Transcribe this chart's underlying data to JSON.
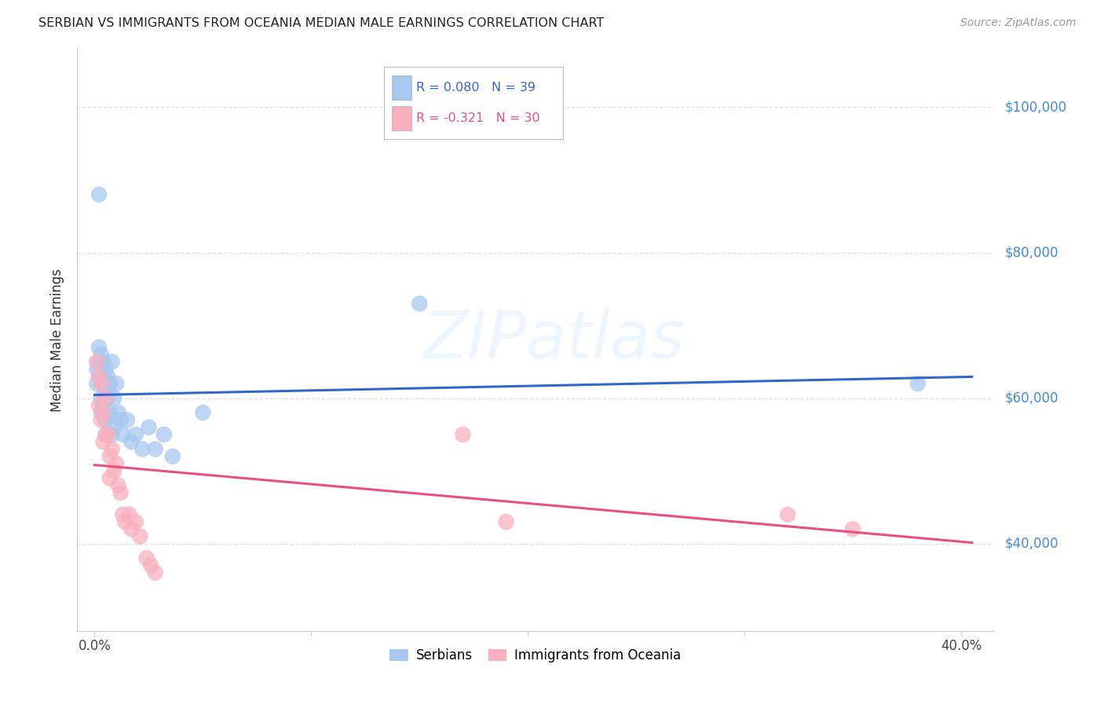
{
  "title": "SERBIAN VS IMMIGRANTS FROM OCEANIA MEDIAN MALE EARNINGS CORRELATION CHART",
  "source": "Source: ZipAtlas.com",
  "ylabel": "Median Male Earnings",
  "xlabel_ticks": [
    "0.0%",
    "",
    "",
    "",
    "40.0%"
  ],
  "xlabel_tick_vals": [
    0.0,
    0.1,
    0.2,
    0.3,
    0.4
  ],
  "ytick_labels": [
    "$40,000",
    "$60,000",
    "$80,000",
    "$100,000"
  ],
  "ytick_vals": [
    40000,
    60000,
    80000,
    100000
  ],
  "xlim": [
    -0.008,
    0.415
  ],
  "ylim": [
    28000,
    108000
  ],
  "watermark": "ZIPatlas",
  "legend_serbian_r": "R = 0.080",
  "legend_serbian_n": "N = 39",
  "legend_oceania_r": "R = -0.321",
  "legend_oceania_n": "N = 30",
  "serbian_color": "#a8c8f0",
  "oceania_color": "#f8b0c0",
  "serbian_line_color": "#3366cc",
  "oceania_line_color": "#e85080",
  "serbian_x": [
    0.001,
    0.001,
    0.002,
    0.002,
    0.002,
    0.003,
    0.003,
    0.003,
    0.003,
    0.004,
    0.004,
    0.004,
    0.005,
    0.005,
    0.005,
    0.006,
    0.006,
    0.007,
    0.007,
    0.008,
    0.008,
    0.009,
    0.009,
    0.01,
    0.011,
    0.012,
    0.013,
    0.015,
    0.017,
    0.019,
    0.022,
    0.025,
    0.028,
    0.032,
    0.036,
    0.05,
    0.15,
    0.38,
    0.002
  ],
  "serbian_y": [
    64000,
    62000,
    67000,
    65000,
    63000,
    66000,
    63000,
    60000,
    58000,
    65000,
    62000,
    59000,
    64000,
    61000,
    57000,
    63000,
    60000,
    62000,
    58000,
    65000,
    55000,
    60000,
    56000,
    62000,
    58000,
    57000,
    55000,
    57000,
    54000,
    55000,
    53000,
    56000,
    53000,
    55000,
    52000,
    58000,
    73000,
    62000,
    88000
  ],
  "oceania_x": [
    0.001,
    0.002,
    0.002,
    0.003,
    0.003,
    0.004,
    0.004,
    0.005,
    0.005,
    0.006,
    0.007,
    0.007,
    0.008,
    0.009,
    0.01,
    0.011,
    0.012,
    0.013,
    0.014,
    0.016,
    0.017,
    0.019,
    0.021,
    0.024,
    0.026,
    0.028,
    0.17,
    0.19,
    0.32,
    0.35
  ],
  "oceania_y": [
    65000,
    63000,
    59000,
    62000,
    57000,
    58000,
    54000,
    60000,
    55000,
    55000,
    52000,
    49000,
    53000,
    50000,
    51000,
    48000,
    47000,
    44000,
    43000,
    44000,
    42000,
    43000,
    41000,
    38000,
    37000,
    36000,
    55000,
    43000,
    44000,
    42000
  ],
  "background_color": "#ffffff",
  "grid_color": "#dddddd"
}
